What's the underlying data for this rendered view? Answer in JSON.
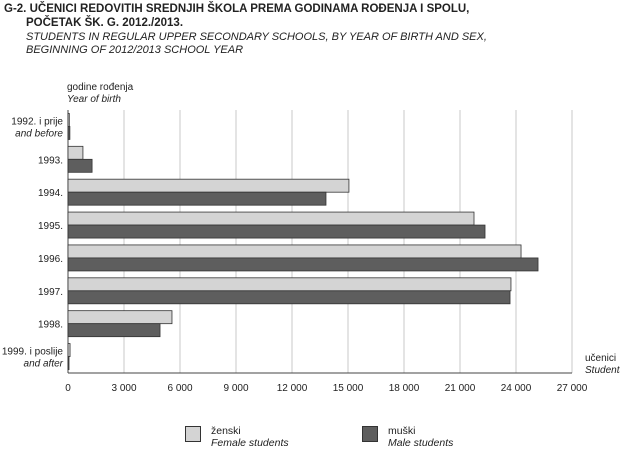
{
  "title": {
    "code": "G-2.",
    "line1": "UČENICI REDOVITIH SREDNJIH ŠKOLA PREMA GODINAMA ROĐENJA I SPOLU,",
    "line2": "POČETAK ŠK. G. 2012./2013.",
    "en1": "STUDENTS IN REGULAR UPPER SECONDARY SCHOOLS, BY YEAR OF BIRTH AND SEX,",
    "en2": "BEGINNING OF 2012/2013 SCHOOL YEAR"
  },
  "chart_data": {
    "type": "bar",
    "orientation": "horizontal",
    "ylabel": "godine rođenja",
    "ylabel_en": "Year of birth",
    "xlabel": "učenici",
    "xlabel_en": "Students",
    "categories": [
      [
        "1992. i prije",
        "and before"
      ],
      [
        "1993.",
        ""
      ],
      [
        "1994.",
        ""
      ],
      [
        "1995.",
        ""
      ],
      [
        "1996.",
        ""
      ],
      [
        "1997.",
        ""
      ],
      [
        "1998.",
        ""
      ],
      [
        "1999. i poslije",
        "and after"
      ]
    ],
    "xlim": [
      0,
      27000
    ],
    "xticks": [
      "0",
      "3 000",
      "6 000",
      "9 000",
      "12 000",
      "15 000",
      "18 000",
      "21 000",
      "24 000",
      "27 000"
    ],
    "grid": true,
    "legend_position": "bottom",
    "series": [
      {
        "name": "ženski",
        "name_en": "Female students",
        "color": "#d4d4d4",
        "values": [
          70,
          800,
          15050,
          21750,
          24270,
          23730,
          5570,
          110
        ]
      },
      {
        "name": "muški",
        "name_en": "Male students",
        "color": "#5e5e5e",
        "values": [
          100,
          1290,
          13820,
          22340,
          25180,
          23680,
          4930,
          50
        ]
      }
    ]
  }
}
